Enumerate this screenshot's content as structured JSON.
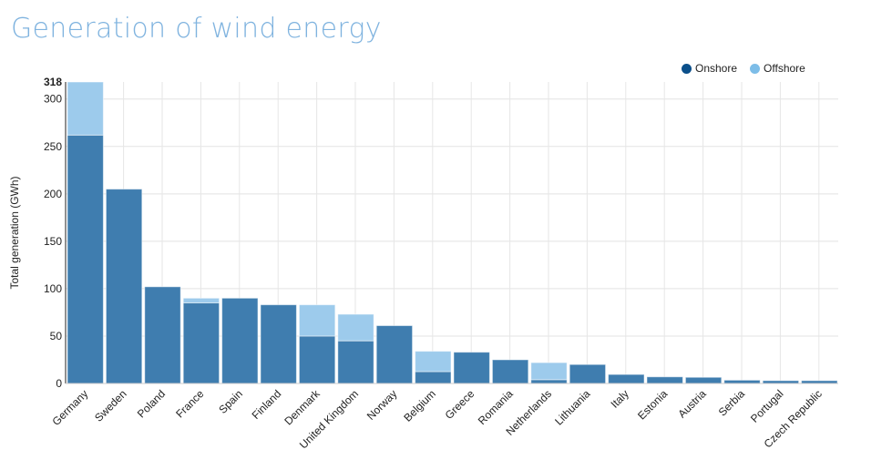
{
  "chart_data": {
    "type": "bar",
    "stacked": true,
    "title": "Generation of wind energy",
    "xlabel": "",
    "ylabel": "Total generation (GWh)",
    "ylim": [
      0,
      318
    ],
    "yticks": [
      0,
      50,
      100,
      150,
      200,
      250,
      300,
      318
    ],
    "grid": true,
    "legend_position": "top-right",
    "categories": [
      "Germany",
      "Sweden",
      "Poland",
      "France",
      "Spain",
      "Finland",
      "Denmark",
      "United Kingdom",
      "Norway",
      "Belgium",
      "Greece",
      "Romania",
      "Netherlands",
      "Lithuania",
      "Italy",
      "Estonia",
      "Austria",
      "Serbia",
      "Portugal",
      "Czech Republic"
    ],
    "series": [
      {
        "name": "Onshore",
        "color": "#3f7daf",
        "legend_color": "#0b4f8a",
        "values": [
          262,
          205,
          102,
          85,
          90,
          83,
          50,
          45,
          61,
          12.5,
          33,
          25,
          4,
          20,
          9.5,
          7,
          6.5,
          3.5,
          3,
          3
        ]
      },
      {
        "name": "Offshore",
        "color": "#9dcbec",
        "legend_color": "#7dbde8",
        "values": [
          56,
          0,
          0,
          5,
          0,
          0,
          33,
          28,
          0,
          21.5,
          0,
          0,
          18,
          0,
          0,
          0,
          0,
          0,
          0,
          0
        ]
      }
    ]
  }
}
